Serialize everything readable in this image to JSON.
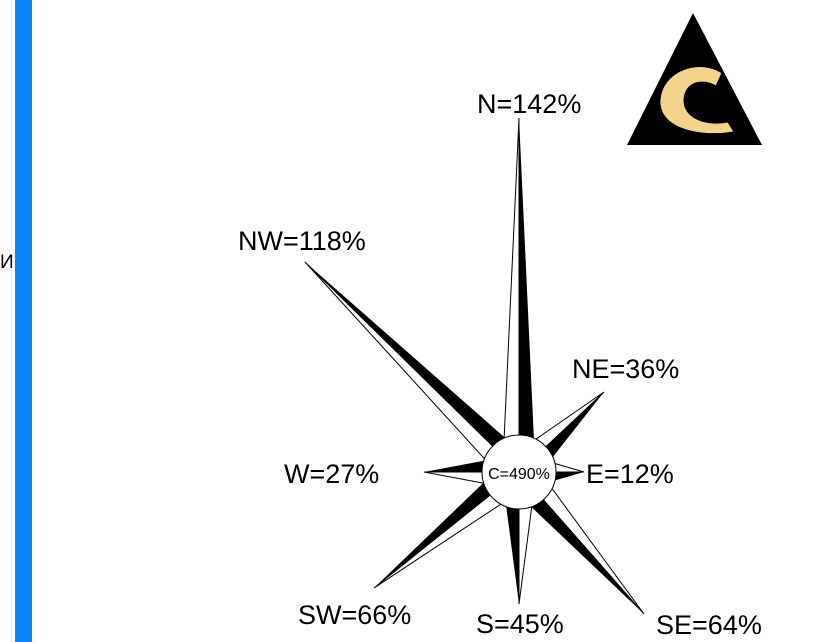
{
  "side_text": "И",
  "accent_color": "#0a84ff",
  "logo": {
    "icon": "compass-c-logo-icon",
    "triangle_color": "#000000",
    "c_color": "#f4d38a"
  },
  "rose": {
    "center_label": "C=490%",
    "directions": [
      {
        "key": "N",
        "label": "N=142%",
        "value": 142
      },
      {
        "key": "NE",
        "label": "NE=36%",
        "value": 36
      },
      {
        "key": "E",
        "label": "E=12%",
        "value": 12
      },
      {
        "key": "SE",
        "label": "SE=64%",
        "value": 64
      },
      {
        "key": "S",
        "label": "S=45%",
        "value": 45
      },
      {
        "key": "SW",
        "label": "SW=66%",
        "value": 66
      },
      {
        "key": "W",
        "label": "W=27%",
        "value": 27
      },
      {
        "key": "NW",
        "label": "NW=118%",
        "value": 118
      }
    ]
  }
}
